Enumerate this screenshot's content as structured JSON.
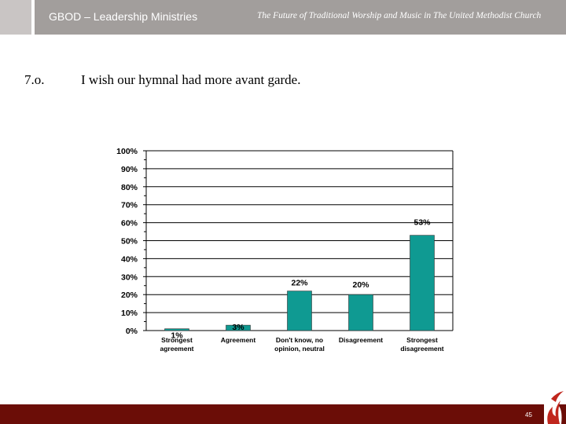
{
  "header": {
    "org_name": "GBOD – Leadership Ministries",
    "deck_title": "The Future of Traditional Worship and Music in The United Methodist Church"
  },
  "slide": {
    "item_number": "7.o.",
    "question": "I wish our hymnal had more avant garde."
  },
  "chart_data": {
    "type": "bar",
    "categories": [
      [
        "Strongest",
        "agreement"
      ],
      [
        "Agreement"
      ],
      [
        "Don't know, no",
        "opinion, neutral"
      ],
      [
        "Disagreement"
      ],
      [
        "Strongest",
        "disagreement"
      ]
    ],
    "values": [
      1,
      3,
      22,
      20,
      53
    ],
    "value_labels": [
      "1%",
      "3%",
      "22%",
      "20%",
      "53%"
    ],
    "y_ticks": [
      "0%",
      "10%",
      "20%",
      "30%",
      "40%",
      "50%",
      "60%",
      "70%",
      "80%",
      "90%",
      "100%"
    ],
    "ylim": [
      0,
      100
    ],
    "grid": true,
    "bar_color": "#0f9a92"
  },
  "footer": {
    "page_number": "45"
  },
  "colors": {
    "footer": "#6b0d07",
    "header": "#a29e9c",
    "logo": "#c0261d"
  }
}
